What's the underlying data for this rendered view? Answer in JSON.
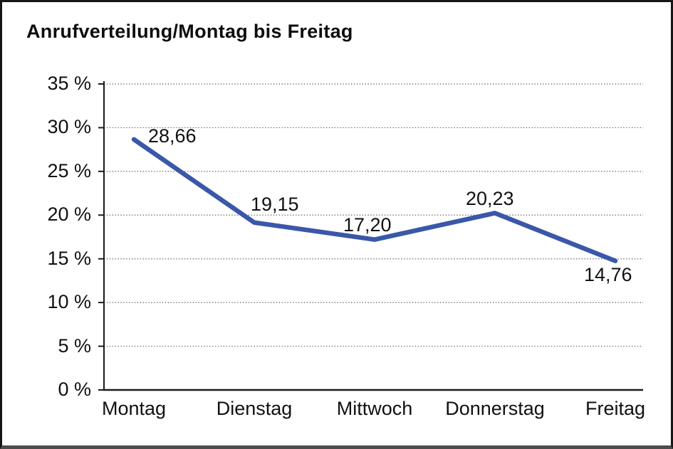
{
  "chart_data": {
    "type": "line",
    "title": "Anrufverteilung/Montag bis Freitag",
    "categories": [
      "Montag",
      "Dienstag",
      "Mittwoch",
      "Donnerstag",
      "Freitag"
    ],
    "values": [
      28.66,
      19.15,
      17.2,
      20.23,
      14.76
    ],
    "value_labels": [
      "28,66",
      "19,15",
      "17,20",
      "20,23",
      "14,76"
    ],
    "series_name": "Anrufverteilung",
    "xlabel": "",
    "ylabel": "",
    "ylim": [
      0,
      35
    ],
    "ytick_step": 5,
    "ytick_labels": [
      "0 %",
      "5 %",
      "10 %",
      "15 %",
      "20 %",
      "25 %",
      "30 %",
      "35 %"
    ],
    "legend": "none",
    "grid": "horizontal-dotted",
    "colors": {
      "line": "#3A57A8",
      "axis": "#1a1a1a",
      "grid": "#555555",
      "text": "#111111",
      "background": "#ffffff"
    }
  }
}
